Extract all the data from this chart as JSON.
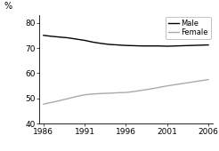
{
  "male_x": [
    1986,
    1987,
    1988,
    1989,
    1990,
    1991,
    1992,
    1993,
    1994,
    1995,
    1996,
    1997,
    1998,
    1999,
    2000,
    2001,
    2002,
    2003,
    2004,
    2005,
    2006
  ],
  "male_y": [
    75.0,
    74.6,
    74.3,
    74.0,
    73.5,
    73.0,
    72.3,
    71.8,
    71.4,
    71.2,
    71.0,
    70.9,
    70.8,
    70.8,
    70.8,
    70.7,
    70.8,
    70.9,
    71.0,
    71.1,
    71.2
  ],
  "female_x": [
    1986,
    1987,
    1988,
    1989,
    1990,
    1991,
    1992,
    1993,
    1994,
    1995,
    1996,
    1997,
    1998,
    1999,
    2000,
    2001,
    2002,
    2003,
    2004,
    2005,
    2006
  ],
  "female_y": [
    47.8,
    48.5,
    49.2,
    50.0,
    50.8,
    51.5,
    51.8,
    52.0,
    52.1,
    52.3,
    52.4,
    52.8,
    53.3,
    53.8,
    54.4,
    55.0,
    55.5,
    56.0,
    56.5,
    57.0,
    57.5
  ],
  "male_color": "#000000",
  "female_color": "#aaaaaa",
  "ylabel": "%",
  "yticks": [
    40,
    50,
    60,
    70,
    80
  ],
  "ylim": [
    40,
    83
  ],
  "xticks": [
    1986,
    1991,
    1996,
    2001,
    2006
  ],
  "xlim": [
    1985.5,
    2006.5
  ],
  "legend_labels": [
    "Male",
    "Female"
  ],
  "background_color": "#ffffff",
  "line_width": 1.0
}
